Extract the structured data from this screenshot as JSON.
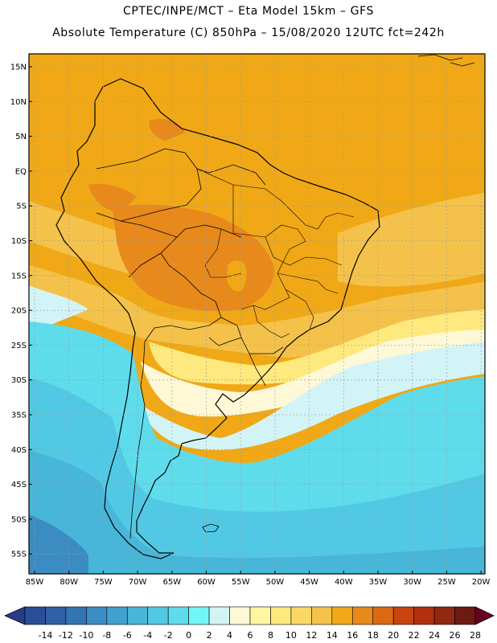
{
  "header": {
    "line1": "CPTEC/INPE/MCT –  Eta Model 15km – GFS",
    "line2": "Absolute Temperature (C) 850hPa – 15/08/2020 12UTC fct=242h"
  },
  "axes": {
    "lat_labels": [
      "15N",
      "10N",
      "5N",
      "EQ",
      "5S",
      "10S",
      "15S",
      "20S",
      "25S",
      "30S",
      "35S",
      "40S",
      "45S",
      "50S",
      "55S"
    ],
    "lon_labels": [
      "85W",
      "80W",
      "75W",
      "70W",
      "65W",
      "60W",
      "55W",
      "50W",
      "45W",
      "40W",
      "35W",
      "30W",
      "25W",
      "20W"
    ]
  },
  "colorbar": {
    "labels": [
      "-14",
      "-12",
      "-10",
      "-8",
      "-6",
      "-4",
      "-2",
      "0",
      "2",
      "4",
      "6",
      "8",
      "10",
      "12",
      "14",
      "16",
      "18",
      "20",
      "22",
      "24",
      "26",
      "28"
    ],
    "colors": [
      "#2a4f98",
      "#2f5fa6",
      "#3474b4",
      "#3b8cc2",
      "#3fa1cf",
      "#47b6d9",
      "#52c9e4",
      "#5fdceb",
      "#6ff7f5",
      "#d2f4f7",
      "#fff8d6",
      "#fff5a2",
      "#fee97e",
      "#fbd863",
      "#f4c24a",
      "#f0a817",
      "#e8891c",
      "#d96a12",
      "#c9430f",
      "#b3300e",
      "#922712",
      "#6e1a14"
    ],
    "under_color": "#2a3b8a",
    "over_color": "#6a0025"
  },
  "field_colors": {
    "tropics": "#f0a817",
    "warm_core": "#e8891c",
    "mild": "#f4c24a",
    "pale_yellow": "#fee97e",
    "cream": "#fff8d6",
    "pale_cyan": "#d2f4f7",
    "cyan": "#5fdceb",
    "teal": "#52c9e4",
    "blue": "#47b6d9",
    "deep_blue": "#3b8cc2",
    "outline": "#000000",
    "grid": "#9a9a9a"
  }
}
